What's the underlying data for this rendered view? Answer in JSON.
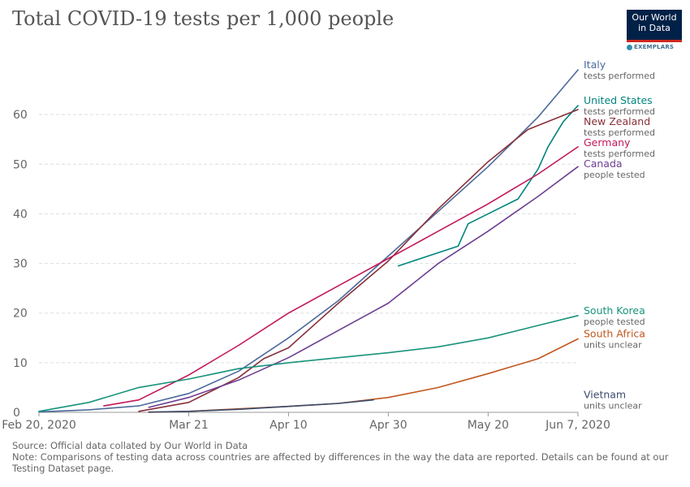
{
  "title": "Total COVID-19 tests per 1,000 people",
  "logo": {
    "line1": "Our World",
    "line2": "in Data",
    "sub": "EXEMPLARS"
  },
  "footer": {
    "source": "Source: Official data collated by Our World in Data",
    "note": "Note: Comparisons of testing data across countries are affected by differences in the way the data are reported. Details can be found at our Testing Dataset page."
  },
  "chart_data": {
    "type": "line",
    "title": "Total COVID-19 tests per 1,000 people",
    "xlabel": "",
    "ylabel": "",
    "xlim": [
      "2020-02-20",
      "2020-06-07"
    ],
    "ylim": [
      0,
      70
    ],
    "y_ticks": [
      0,
      10,
      20,
      30,
      40,
      50,
      60
    ],
    "x_ticks": [
      {
        "date": "2020-02-20",
        "label": "Feb 20, 2020"
      },
      {
        "date": "2020-03-21",
        "label": "Mar 21"
      },
      {
        "date": "2020-04-10",
        "label": "Apr 10"
      },
      {
        "date": "2020-04-30",
        "label": "Apr 30"
      },
      {
        "date": "2020-05-20",
        "label": "May 20"
      },
      {
        "date": "2020-06-07",
        "label": "Jun 7, 2020"
      }
    ],
    "grid": true,
    "legend": "right, labels at line ends",
    "series": [
      {
        "name": "Italy",
        "sub": "tests performed",
        "color": "#4c6a9c",
        "x": [
          "2020-02-20",
          "2020-03-01",
          "2020-03-11",
          "2020-03-21",
          "2020-03-31",
          "2020-04-10",
          "2020-04-20",
          "2020-04-30",
          "2020-05-10",
          "2020-05-20",
          "2020-05-30",
          "2020-06-07"
        ],
        "y": [
          0.1,
          0.5,
          1.3,
          3.8,
          8.3,
          15.0,
          22.5,
          31.5,
          40.5,
          49.5,
          59.5,
          69.0
        ]
      },
      {
        "name": "United States",
        "sub": "tests performed",
        "color": "#00847e",
        "x": [
          "2020-05-02",
          "2020-05-08",
          "2020-05-14",
          "2020-05-16",
          "2020-05-22",
          "2020-05-26",
          "2020-05-30",
          "2020-06-01",
          "2020-06-04",
          "2020-06-07"
        ],
        "y": [
          29.5,
          31.5,
          33.5,
          38.0,
          41.0,
          43.0,
          49.0,
          53.5,
          58.5,
          61.8
        ]
      },
      {
        "name": "New Zealand",
        "sub": "tests performed",
        "color": "#883039",
        "x": [
          "2020-03-11",
          "2020-03-21",
          "2020-03-31",
          "2020-04-05",
          "2020-04-10",
          "2020-04-20",
          "2020-04-30",
          "2020-05-10",
          "2020-05-20",
          "2020-05-28",
          "2020-06-07"
        ],
        "y": [
          0.2,
          2.0,
          7.0,
          10.8,
          13.0,
          22.0,
          30.5,
          41.0,
          50.5,
          57.0,
          61.0
        ]
      },
      {
        "name": "Germany",
        "sub": "tests performed",
        "color": "#c2185b",
        "x": [
          "2020-03-04",
          "2020-03-11",
          "2020-03-21",
          "2020-03-31",
          "2020-04-10",
          "2020-04-20",
          "2020-04-30",
          "2020-05-10",
          "2020-05-20",
          "2020-05-30",
          "2020-06-07"
        ],
        "y": [
          1.3,
          2.5,
          7.5,
          13.5,
          20.0,
          25.5,
          31.0,
          36.5,
          42.0,
          48.0,
          53.5
        ]
      },
      {
        "name": "Canada",
        "sub": "people tested",
        "color": "#6d3e91",
        "x": [
          "2020-03-13",
          "2020-03-21",
          "2020-03-31",
          "2020-04-10",
          "2020-04-20",
          "2020-04-30",
          "2020-05-10",
          "2020-05-20",
          "2020-05-30",
          "2020-06-07"
        ],
        "y": [
          1.0,
          3.0,
          6.5,
          11.0,
          16.5,
          22.0,
          30.0,
          36.5,
          43.5,
          49.5
        ]
      },
      {
        "name": "South Korea",
        "sub": "people tested",
        "color": "#18937b",
        "x": [
          "2020-02-20",
          "2020-03-01",
          "2020-03-11",
          "2020-03-21",
          "2020-03-31",
          "2020-04-10",
          "2020-04-20",
          "2020-04-30",
          "2020-05-10",
          "2020-05-20",
          "2020-05-30",
          "2020-06-07"
        ],
        "y": [
          0.2,
          2.0,
          5.0,
          6.7,
          8.8,
          10.0,
          11.0,
          12.0,
          13.2,
          15.0,
          17.5,
          19.5
        ]
      },
      {
        "name": "South Africa",
        "sub": "units unclear",
        "color": "#c0571e",
        "x": [
          "2020-03-13",
          "2020-03-21",
          "2020-03-31",
          "2020-04-10",
          "2020-04-20",
          "2020-04-30",
          "2020-05-10",
          "2020-05-20",
          "2020-05-30",
          "2020-06-07"
        ],
        "y": [
          0.0,
          0.2,
          0.7,
          1.2,
          1.8,
          3.0,
          5.0,
          7.8,
          10.8,
          14.8
        ]
      },
      {
        "name": "Vietnam",
        "sub": "units unclear",
        "color": "#3a4a6b",
        "x": [
          "2020-03-13",
          "2020-03-21",
          "2020-03-31",
          "2020-04-10",
          "2020-04-20",
          "2020-04-27"
        ],
        "y": [
          0.05,
          0.2,
          0.6,
          1.2,
          1.8,
          2.5
        ]
      }
    ]
  }
}
